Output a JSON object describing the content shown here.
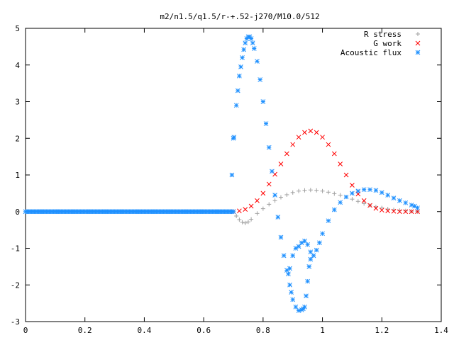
{
  "chart_data": {
    "type": "scatter",
    "title": "m2/n1.5/q1.5/r-+.52-j270/M10.0/512",
    "xlabel": "",
    "ylabel": "",
    "xlim": [
      0,
      1.4
    ],
    "ylim": [
      -3,
      5
    ],
    "x_ticks": [
      "0",
      "0.2",
      "0.4",
      "0.6",
      "0.8",
      "1",
      "1.2",
      "1.4"
    ],
    "y_ticks": [
      "-3",
      "-2",
      "-1",
      "0",
      "1",
      "2",
      "3",
      "4",
      "5"
    ],
    "grid": false,
    "legend_position": "top-right",
    "series": [
      {
        "name": "R stress",
        "marker": "plus",
        "color": "#a0a0a0",
        "points": [
          [
            0.7,
            0.0
          ],
          [
            0.71,
            -0.12
          ],
          [
            0.72,
            -0.22
          ],
          [
            0.73,
            -0.29
          ],
          [
            0.74,
            -0.31
          ],
          [
            0.75,
            -0.28
          ],
          [
            0.76,
            -0.21
          ],
          [
            0.78,
            -0.05
          ],
          [
            0.8,
            0.08
          ],
          [
            0.82,
            0.2
          ],
          [
            0.84,
            0.3
          ],
          [
            0.86,
            0.39
          ],
          [
            0.88,
            0.46
          ],
          [
            0.9,
            0.52
          ],
          [
            0.92,
            0.56
          ],
          [
            0.94,
            0.58
          ],
          [
            0.96,
            0.59
          ],
          [
            0.98,
            0.58
          ],
          [
            1.0,
            0.56
          ],
          [
            1.02,
            0.53
          ],
          [
            1.04,
            0.49
          ],
          [
            1.06,
            0.45
          ],
          [
            1.08,
            0.4
          ],
          [
            1.1,
            0.34
          ],
          [
            1.12,
            0.28
          ],
          [
            1.14,
            0.22
          ],
          [
            1.16,
            0.17
          ],
          [
            1.18,
            0.13
          ],
          [
            1.2,
            0.1
          ],
          [
            1.22,
            0.07
          ],
          [
            1.24,
            0.05
          ],
          [
            1.26,
            0.03
          ],
          [
            1.28,
            0.02
          ],
          [
            1.3,
            0.01
          ],
          [
            1.32,
            0.0
          ]
        ]
      },
      {
        "name": "G work",
        "marker": "cross",
        "color": "#ff0000",
        "points": [
          [
            0.7,
            0.0
          ],
          [
            0.72,
            0.02
          ],
          [
            0.74,
            0.06
          ],
          [
            0.76,
            0.15
          ],
          [
            0.78,
            0.3
          ],
          [
            0.8,
            0.5
          ],
          [
            0.82,
            0.75
          ],
          [
            0.84,
            1.02
          ],
          [
            0.86,
            1.3
          ],
          [
            0.88,
            1.58
          ],
          [
            0.9,
            1.83
          ],
          [
            0.92,
            2.03
          ],
          [
            0.94,
            2.16
          ],
          [
            0.96,
            2.2
          ],
          [
            0.98,
            2.16
          ],
          [
            1.0,
            2.03
          ],
          [
            1.02,
            1.83
          ],
          [
            1.04,
            1.58
          ],
          [
            1.06,
            1.3
          ],
          [
            1.08,
            1.0
          ],
          [
            1.1,
            0.72
          ],
          [
            1.12,
            0.48
          ],
          [
            1.14,
            0.3
          ],
          [
            1.16,
            0.17
          ],
          [
            1.18,
            0.09
          ],
          [
            1.2,
            0.04
          ],
          [
            1.22,
            0.02
          ],
          [
            1.24,
            0.01
          ],
          [
            1.26,
            0.0
          ],
          [
            1.28,
            0.0
          ],
          [
            1.3,
            0.0
          ],
          [
            1.32,
            0.0
          ]
        ]
      },
      {
        "name": "Acoustic flux",
        "marker": "star",
        "color": "#1e90ff",
        "points": [
          [
            0.695,
            1.0
          ],
          [
            0.7,
            2.0
          ],
          [
            0.702,
            2.03
          ],
          [
            0.71,
            2.9
          ],
          [
            0.715,
            3.3
          ],
          [
            0.72,
            3.7
          ],
          [
            0.725,
            3.95
          ],
          [
            0.73,
            4.2
          ],
          [
            0.735,
            4.42
          ],
          [
            0.74,
            4.6
          ],
          [
            0.745,
            4.72
          ],
          [
            0.75,
            4.77
          ],
          [
            0.755,
            4.77
          ],
          [
            0.76,
            4.72
          ],
          [
            0.765,
            4.6
          ],
          [
            0.77,
            4.45
          ],
          [
            0.78,
            4.1
          ],
          [
            0.79,
            3.6
          ],
          [
            0.8,
            3.0
          ],
          [
            0.81,
            2.4
          ],
          [
            0.82,
            1.75
          ],
          [
            0.83,
            1.1
          ],
          [
            0.84,
            0.45
          ],
          [
            0.85,
            -0.15
          ],
          [
            0.86,
            -0.7
          ],
          [
            0.87,
            -1.2
          ],
          [
            0.88,
            -1.6
          ],
          [
            0.885,
            -1.7
          ],
          [
            0.89,
            -1.55
          ],
          [
            0.9,
            -1.2
          ],
          [
            0.91,
            -1.0
          ],
          [
            0.92,
            -0.95
          ],
          [
            0.93,
            -0.85
          ],
          [
            0.94,
            -0.8
          ],
          [
            0.95,
            -0.9
          ],
          [
            0.96,
            -1.1
          ],
          [
            0.97,
            -1.2
          ],
          [
            0.98,
            -1.05
          ],
          [
            0.99,
            -0.85
          ],
          [
            1.0,
            -0.6
          ],
          [
            1.02,
            -0.25
          ],
          [
            1.04,
            0.05
          ],
          [
            1.06,
            0.25
          ],
          [
            1.08,
            0.4
          ],
          [
            1.1,
            0.5
          ],
          [
            1.12,
            0.56
          ],
          [
            1.14,
            0.6
          ],
          [
            1.16,
            0.6
          ],
          [
            1.18,
            0.58
          ],
          [
            1.2,
            0.52
          ],
          [
            1.22,
            0.45
          ],
          [
            1.24,
            0.37
          ],
          [
            1.26,
            0.3
          ],
          [
            1.28,
            0.24
          ],
          [
            1.3,
            0.18
          ],
          [
            1.31,
            0.15
          ],
          [
            1.32,
            0.1
          ],
          [
            0.89,
            -2.0
          ],
          [
            0.895,
            -2.2
          ],
          [
            0.9,
            -2.4
          ],
          [
            0.91,
            -2.6
          ],
          [
            0.92,
            -2.7
          ],
          [
            0.93,
            -2.68
          ],
          [
            0.935,
            -2.65
          ],
          [
            0.94,
            -2.6
          ],
          [
            0.945,
            -2.3
          ],
          [
            0.95,
            -1.9
          ],
          [
            0.955,
            -1.5
          ],
          [
            0.96,
            -1.3
          ]
        ]
      }
    ]
  }
}
